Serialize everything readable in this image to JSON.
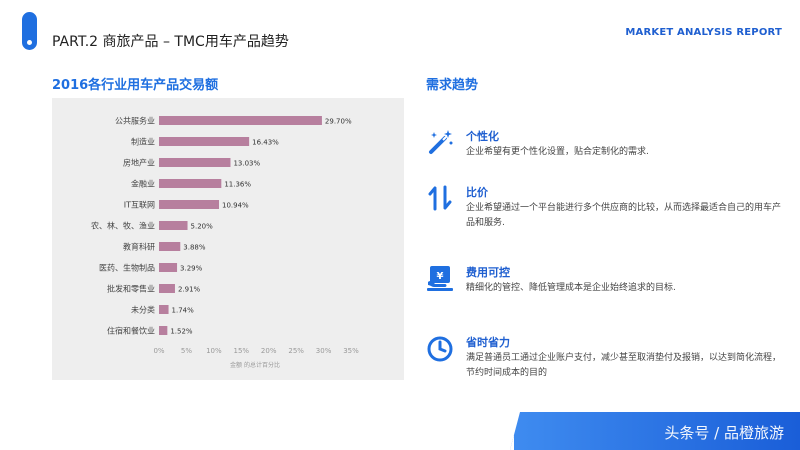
{
  "header": {
    "title": "PART.2 商旅产品 – TMC用车产品趋势",
    "report_tag": "MARKET ANALYSIS REPORT"
  },
  "left_section": {
    "title": "2016各行业用车产品交易额"
  },
  "right_section": {
    "title": "需求趋势"
  },
  "chart_data": {
    "type": "bar",
    "orientation": "horizontal",
    "categories": [
      "公共服务业",
      "制造业",
      "房地产业",
      "金融业",
      "IT互联网",
      "农、林、牧、渔业",
      "教育科研",
      "医药、生物制品",
      "批发和零售业",
      "未分类",
      "住宿和餐饮业"
    ],
    "values": [
      29.7,
      16.43,
      13.03,
      11.36,
      10.94,
      5.2,
      3.88,
      3.29,
      2.91,
      1.74,
      1.52
    ],
    "value_labels": [
      "29.70%",
      "16.43%",
      "13.03%",
      "11.36%",
      "10.94%",
      "5.20%",
      "3.88%",
      "3.29%",
      "2.91%",
      "1.74%",
      "1.52%"
    ],
    "x_ticks": [
      "0%",
      "5%",
      "10%",
      "15%",
      "20%",
      "25%",
      "30%",
      "35%"
    ],
    "xlim": [
      0,
      35
    ],
    "xlabel": "金额 的总计百分比",
    "title": "",
    "grid": false,
    "bar_color": "#b77f9e"
  },
  "trends": [
    {
      "icon": "magic-wand-icon",
      "title": "个性化",
      "desc": "企业希望有更个性化设置，贴合定制化的需求."
    },
    {
      "icon": "compare-arrows-icon",
      "title": "比价",
      "desc": "企业希望通过一个平台能进行多个供应商的比较，从而选择最适合自己的用车产品和服务."
    },
    {
      "icon": "cost-control-icon",
      "title": "费用可控",
      "desc": "精细化的管控、降低管理成本是企业始终追求的目标."
    },
    {
      "icon": "clock-icon",
      "title": "省时省力",
      "desc": "满足普通员工通过企业账户支付，减少甚至取消垫付及报销，以达到简化流程，节约时间成本的目的"
    }
  ],
  "footer": {
    "watermark": "头条号 / 品橙旅游"
  },
  "colors": {
    "accent": "#1f6fe0",
    "bar": "#b77f9e",
    "panel": "#eeeeee"
  }
}
